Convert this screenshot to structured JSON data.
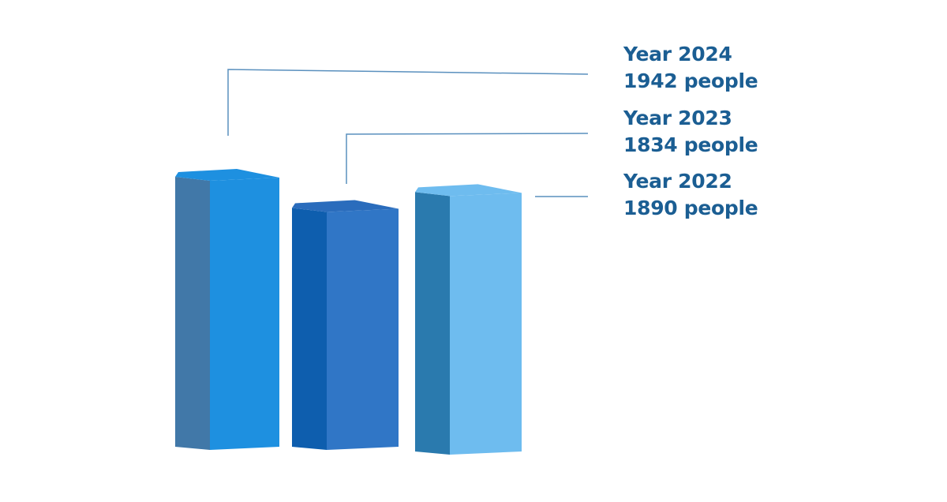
{
  "chart_data": {
    "type": "bar",
    "style": "3d-column",
    "categories": [
      "Year 2024",
      "Year 2023",
      "Year 2022"
    ],
    "values": [
      1942,
      1834,
      1890
    ],
    "unit": "people",
    "labels": [
      {
        "year": "Year 2024",
        "value_text": "1942 people"
      },
      {
        "year": "Year 2023",
        "value_text": "1834 people"
      },
      {
        "year": "Year 2022",
        "value_text": "1890 people"
      }
    ],
    "ylim": [
      0,
      1942
    ],
    "grid": false,
    "legend": "none",
    "bar_colors": [
      {
        "front": "#1e90e0",
        "side": "#4178a8",
        "top": "#1e90e0"
      },
      {
        "front": "#3076c6",
        "side": "#0e5eae",
        "top": "#2a6cbc"
      },
      {
        "front": "#6ebcef",
        "side": "#2a7aae",
        "top": "#6ebcef"
      }
    ],
    "connector_color": "#5a90be",
    "label_color": "#1b5e93"
  }
}
